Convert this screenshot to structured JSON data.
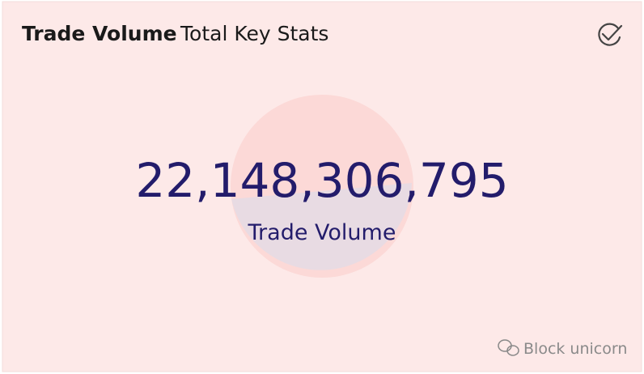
{
  "header": {
    "title": "Trade Volume",
    "subtitle": "Total Key Stats"
  },
  "kpi": {
    "value": "22,148,306,795",
    "label": "Trade Volume"
  },
  "watermark": "Block unicorn"
}
